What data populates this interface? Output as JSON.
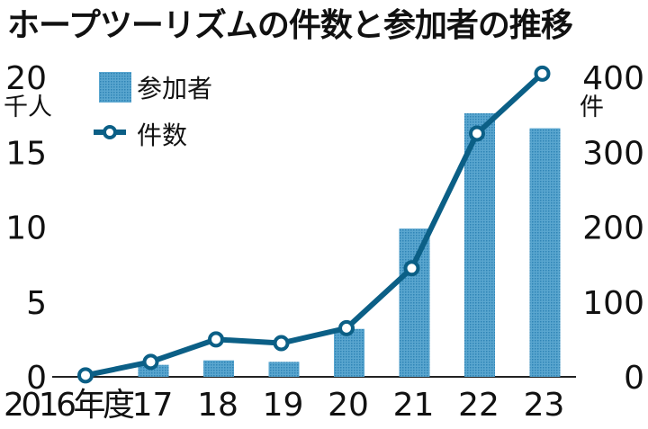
{
  "chart_data": {
    "type": "bar+line",
    "title": "ホープツーリズムの件数と参加者の推移",
    "categories": [
      "2016年度",
      "17",
      "18",
      "19",
      "20",
      "21",
      "22",
      "23"
    ],
    "series": [
      {
        "name": "参加者",
        "type": "bar",
        "axis": "left",
        "color": "#4f9fc8",
        "values": [
          0,
          0.8,
          1.1,
          1.0,
          3.2,
          9.9,
          17.6,
          16.6
        ]
      },
      {
        "name": "件数",
        "type": "line",
        "axis": "right",
        "color": "#0b5f86",
        "values": [
          2,
          20,
          50,
          45,
          65,
          145,
          325,
          405
        ]
      }
    ],
    "y_left": {
      "unit": "千人",
      "ylim": [
        0,
        20
      ],
      "ticks": [
        "0",
        "5",
        "10",
        "15",
        "20"
      ]
    },
    "y_right": {
      "unit": "件",
      "ylim": [
        0,
        400
      ],
      "ticks": [
        "0",
        "100",
        "200",
        "300",
        "400"
      ]
    },
    "legend": {
      "placement": "top-left",
      "entries": [
        "参加者",
        "件数"
      ]
    },
    "grid": false
  }
}
